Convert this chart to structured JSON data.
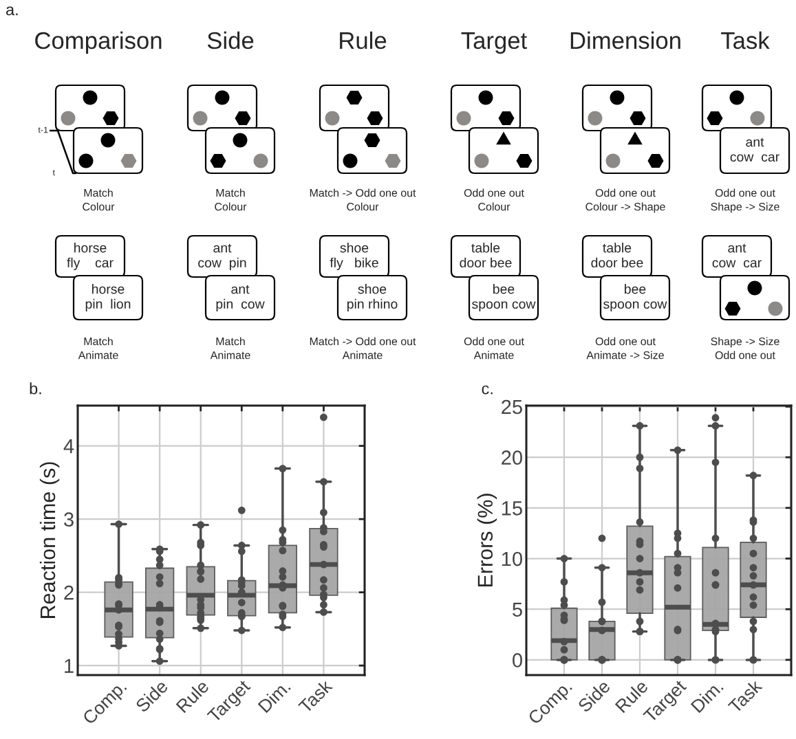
{
  "chart_data": [
    {
      "type": "other",
      "title": "a.",
      "annotations": [
        "Comparison",
        "Side",
        "Rule",
        "Target",
        "Dimension",
        "Task",
        "Match\nColour",
        "Match\nColour",
        "Match -> Odd one out\nColour",
        "Odd one out\nColour",
        "Odd one out\nColour -> Shape",
        "Odd one out\nShape -> Size",
        "Match\nAnimate",
        "Match\nAnimate",
        "Match -> Odd one out\nAnimate",
        "Odd one out\nAnimate",
        "Odd one out\nAnimate -> Size",
        "Shape -> Size\nOdd one out",
        "horse\nfly    car",
        "horse\npin  lion",
        "ant\ncow  pin",
        "ant\npin  cow",
        "shoe\nfly   bike",
        "shoe\npin rhino",
        "table\ndoor bee",
        "bee\nspoon cow",
        "table\ndoor bee",
        "bee\nspoon cow",
        "ant\ncow  car",
        "ant\ncow  car",
        "t-1",
        "t"
      ]
    },
    {
      "type": "box",
      "title": "b.",
      "ylabel": "Reaction time (s)",
      "categories": [
        "Comp.",
        "Side",
        "Rule",
        "Target",
        "Dim.",
        "Task"
      ],
      "ylim": [
        0.87,
        4.55
      ],
      "yticks": [
        1,
        2,
        3,
        4
      ],
      "grid": true,
      "series": [
        {
          "type": "box",
          "color": "#a6a6a6",
          "boxes": [
            {
              "low": 1.27,
              "q1": 1.39,
              "median": 1.76,
              "q3": 2.14,
              "high": 2.93
            },
            {
              "low": 1.06,
              "q1": 1.38,
              "median": 1.77,
              "q3": 2.33,
              "high": 2.59
            },
            {
              "low": 1.51,
              "q1": 1.69,
              "median": 1.96,
              "q3": 2.35,
              "high": 2.92
            },
            {
              "low": 1.48,
              "q1": 1.68,
              "median": 1.96,
              "q3": 2.16,
              "high": 2.64
            },
            {
              "low": 1.52,
              "q1": 1.72,
              "median": 2.09,
              "q3": 2.64,
              "high": 3.69
            },
            {
              "low": 1.73,
              "q1": 1.96,
              "median": 2.38,
              "q3": 2.87,
              "high": 3.51
            }
          ]
        },
        {
          "type": "scatter",
          "color": "#4d4d4d",
          "marker": "circle",
          "x": [
            "Comp.",
            "Comp.",
            "Comp.",
            "Comp.",
            "Comp.",
            "Comp.",
            "Comp.",
            "Comp.",
            "Comp.",
            "Comp.",
            "Comp.",
            "Comp.",
            "Comp.",
            "Comp.",
            "Side",
            "Side",
            "Side",
            "Side",
            "Side",
            "Side",
            "Side",
            "Side",
            "Side",
            "Side",
            "Side",
            "Side",
            "Side",
            "Side",
            "Side",
            "Rule",
            "Rule",
            "Rule",
            "Rule",
            "Rule",
            "Rule",
            "Rule",
            "Rule",
            "Rule",
            "Rule",
            "Rule",
            "Rule",
            "Rule",
            "Rule",
            "Rule",
            "Target",
            "Target",
            "Target",
            "Target",
            "Target",
            "Target",
            "Target",
            "Target",
            "Target",
            "Target",
            "Target",
            "Target",
            "Dim.",
            "Dim.",
            "Dim.",
            "Dim.",
            "Dim.",
            "Dim.",
            "Dim.",
            "Dim.",
            "Dim.",
            "Dim.",
            "Dim.",
            "Dim.",
            "Dim.",
            "Dim.",
            "Task",
            "Task",
            "Task",
            "Task",
            "Task",
            "Task",
            "Task",
            "Task",
            "Task",
            "Task",
            "Task",
            "Task",
            "Task",
            "Task"
          ],
          "values": [
            2.93,
            2.2,
            2.17,
            2.12,
            2.1,
            1.84,
            1.82,
            1.76,
            1.55,
            1.53,
            1.43,
            1.37,
            1.32,
            1.27,
            2.59,
            2.56,
            2.45,
            2.37,
            2.21,
            2.12,
            1.83,
            1.79,
            1.61,
            1.59,
            1.44,
            1.36,
            1.23,
            1.22,
            1.06,
            2.92,
            2.68,
            2.64,
            2.37,
            2.29,
            2.28,
            2.18,
            1.9,
            1.83,
            1.79,
            1.72,
            1.68,
            1.65,
            1.62,
            1.51,
            3.12,
            2.64,
            2.56,
            2.17,
            2.14,
            2.09,
            2.0,
            1.86,
            1.72,
            1.68,
            1.67,
            1.48,
            3.69,
            2.85,
            2.72,
            2.68,
            2.57,
            2.29,
            2.21,
            2.1,
            2.06,
            1.82,
            1.81,
            1.7,
            1.67,
            1.52,
            4.39,
            3.51,
            3.09,
            2.88,
            2.83,
            2.65,
            2.62,
            2.38,
            2.17,
            2.06,
            1.97,
            1.93,
            1.83,
            1.73
          ]
        }
      ]
    },
    {
      "type": "box",
      "title": "c.",
      "ylabel": "Errors (%)",
      "categories": [
        "Comp.",
        "Side",
        "Rule",
        "Target",
        "Dim.",
        "Task"
      ],
      "ylim": [
        -1.5,
        25.1
      ],
      "yticks": [
        0,
        5,
        10,
        15,
        20,
        25
      ],
      "grid": true,
      "series": [
        {
          "type": "box",
          "color": "#a6a6a6",
          "boxes": [
            {
              "low": 0,
              "q1": 0,
              "median": 1.9,
              "q3": 5.1,
              "high": 10
            },
            {
              "low": 0,
              "q1": 0,
              "median": 3.0,
              "q3": 3.8,
              "high": 9.1
            },
            {
              "low": 2.8,
              "q1": 4.6,
              "median": 8.6,
              "q3": 13.2,
              "high": 23.1
            },
            {
              "low": 0,
              "q1": 0,
              "median": 5.2,
              "q3": 10.2,
              "high": 20.7
            },
            {
              "low": 0,
              "q1": 2.9,
              "median": 3.5,
              "q3": 11.1,
              "high": 23.1
            },
            {
              "low": 0,
              "q1": 4.2,
              "median": 7.4,
              "q3": 11.6,
              "high": 18.2
            }
          ]
        },
        {
          "type": "scatter",
          "color": "#4d4d4d",
          "marker": "circle",
          "x": [
            "Comp.",
            "Comp.",
            "Comp.",
            "Comp.",
            "Comp.",
            "Comp.",
            "Comp.",
            "Comp.",
            "Comp.",
            "Comp.",
            "Comp.",
            "Comp.",
            "Comp.",
            "Comp.",
            "Comp.",
            "Side",
            "Side",
            "Side",
            "Side",
            "Side",
            "Side",
            "Side",
            "Side",
            "Side",
            "Side",
            "Side",
            "Side",
            "Rule",
            "Rule",
            "Rule",
            "Rule",
            "Rule",
            "Rule",
            "Rule",
            "Rule",
            "Rule",
            "Rule",
            "Rule",
            "Rule",
            "Rule",
            "Target",
            "Target",
            "Target",
            "Target",
            "Target",
            "Target",
            "Target",
            "Target",
            "Target",
            "Target",
            "Target",
            "Target",
            "Target",
            "Target",
            "Dim.",
            "Dim.",
            "Dim.",
            "Dim.",
            "Dim.",
            "Dim.",
            "Dim.",
            "Dim.",
            "Dim.",
            "Dim.",
            "Dim.",
            "Dim.",
            "Task",
            "Task",
            "Task",
            "Task",
            "Task",
            "Task",
            "Task",
            "Task",
            "Task",
            "Task",
            "Task",
            "Task",
            "Task",
            "Task"
          ],
          "values": [
            10,
            7.7,
            5.9,
            5.4,
            4.4,
            4.0,
            3.9,
            1.8,
            1.0,
            0,
            0,
            0,
            0,
            0,
            0,
            12.0,
            9.1,
            5.7,
            3.8,
            3.8,
            2.9,
            0,
            0,
            0,
            0,
            0,
            0,
            23.1,
            20.0,
            18.9,
            13.6,
            11.7,
            11.4,
            10.0,
            8.6,
            7.7,
            6.9,
            3.8,
            2.8,
            2.8,
            20.7,
            12.5,
            12.0,
            10.5,
            9.1,
            8.6,
            7.1,
            3.0,
            2.9,
            0,
            0,
            0,
            0,
            0,
            23.9,
            23.1,
            19.5,
            12.0,
            8.6,
            7.4,
            7.4,
            3.6,
            3.0,
            2.8,
            0,
            0,
            18.2,
            13.8,
            13.6,
            12.0,
            10.5,
            9.1,
            8.3,
            7.4,
            6.2,
            5.4,
            3.8,
            3.0,
            0,
            0
          ]
        }
      ]
    }
  ]
}
